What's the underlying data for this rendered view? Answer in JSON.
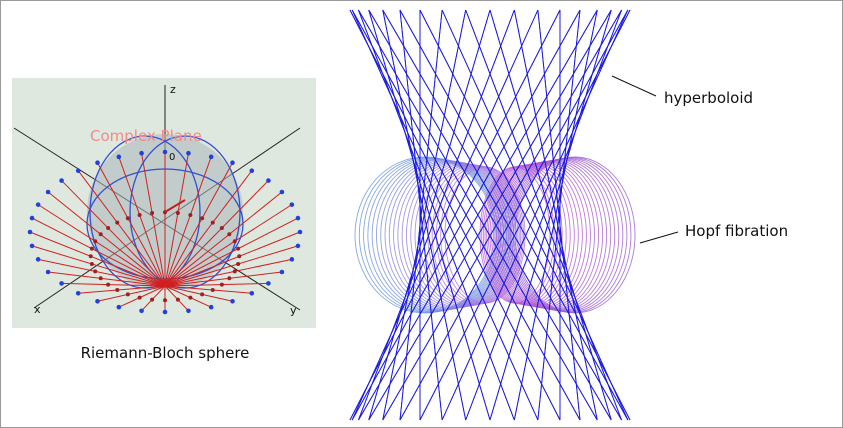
{
  "left_panel": {
    "caption": "Riemann-Bloch sphere",
    "plane_label": "Complex Plane",
    "axis_z": "z",
    "axis_x": "x",
    "axis_y": "y",
    "origin": "0"
  },
  "right_panel": {
    "hyperboloid_label": "hyperboloid",
    "hopf_label": "Hopf fibration"
  }
}
